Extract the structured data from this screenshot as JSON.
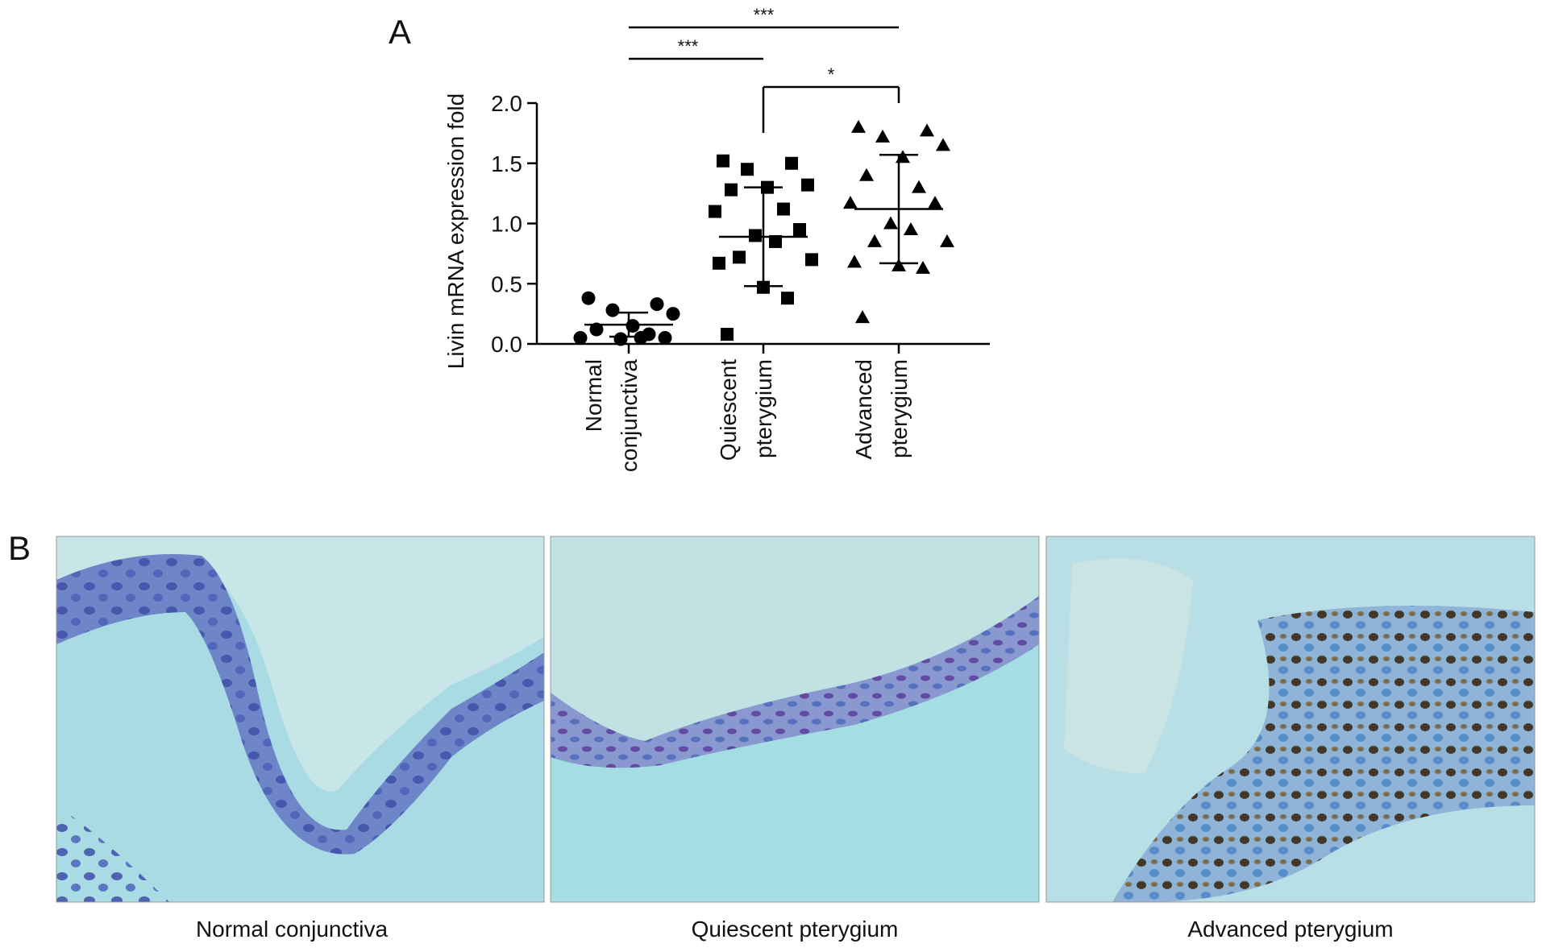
{
  "chart_data": {
    "type": "dot",
    "panel_label": "A",
    "y_label": "Livin mRNA expression fold",
    "categories": [
      [
        "Normal",
        "conjunctiva"
      ],
      [
        "Quiescent",
        "pterygium"
      ],
      [
        "Advanced",
        "pterygium"
      ]
    ],
    "groups": [
      {
        "marker": "circle",
        "values": [
          0.38,
          0.33,
          0.28,
          0.25,
          0.15,
          0.12,
          0.08,
          0.05,
          0.05,
          0.04,
          0.05
        ],
        "mean": 0.16,
        "error": 0.1
      },
      {
        "marker": "square",
        "values": [
          1.52,
          1.5,
          1.45,
          1.32,
          1.3,
          1.28,
          1.12,
          1.1,
          0.95,
          0.9,
          0.85,
          0.72,
          0.7,
          0.67,
          0.47,
          0.38,
          0.08
        ],
        "mean": 0.89,
        "error": 0.41
      },
      {
        "marker": "triangle",
        "values": [
          1.8,
          1.77,
          1.72,
          1.65,
          1.55,
          1.4,
          1.3,
          1.17,
          1.17,
          1.0,
          0.95,
          0.85,
          0.85,
          0.68,
          0.65,
          0.63,
          0.22
        ],
        "mean": 1.12,
        "error": 0.45
      }
    ],
    "ylim": [
      0,
      2
    ],
    "yticks": [
      {
        "value": 0,
        "label": "0.0"
      },
      0.5,
      {
        "value": 1,
        "label": "1.0"
      },
      1.5,
      {
        "value": 2,
        "label": "2.0"
      }
    ],
    "significance": [
      {
        "from": 0,
        "to": 2,
        "label": "***"
      },
      {
        "from": 0,
        "to": 1,
        "label": "***"
      },
      {
        "from": 1,
        "to": 2,
        "label": "*"
      }
    ],
    "color": "#000000"
  },
  "panel_b": {
    "panel_label": "B",
    "captions": [
      "Normal conjunctiva",
      "Quiescent pterygium",
      "Advanced pterygium"
    ]
  }
}
